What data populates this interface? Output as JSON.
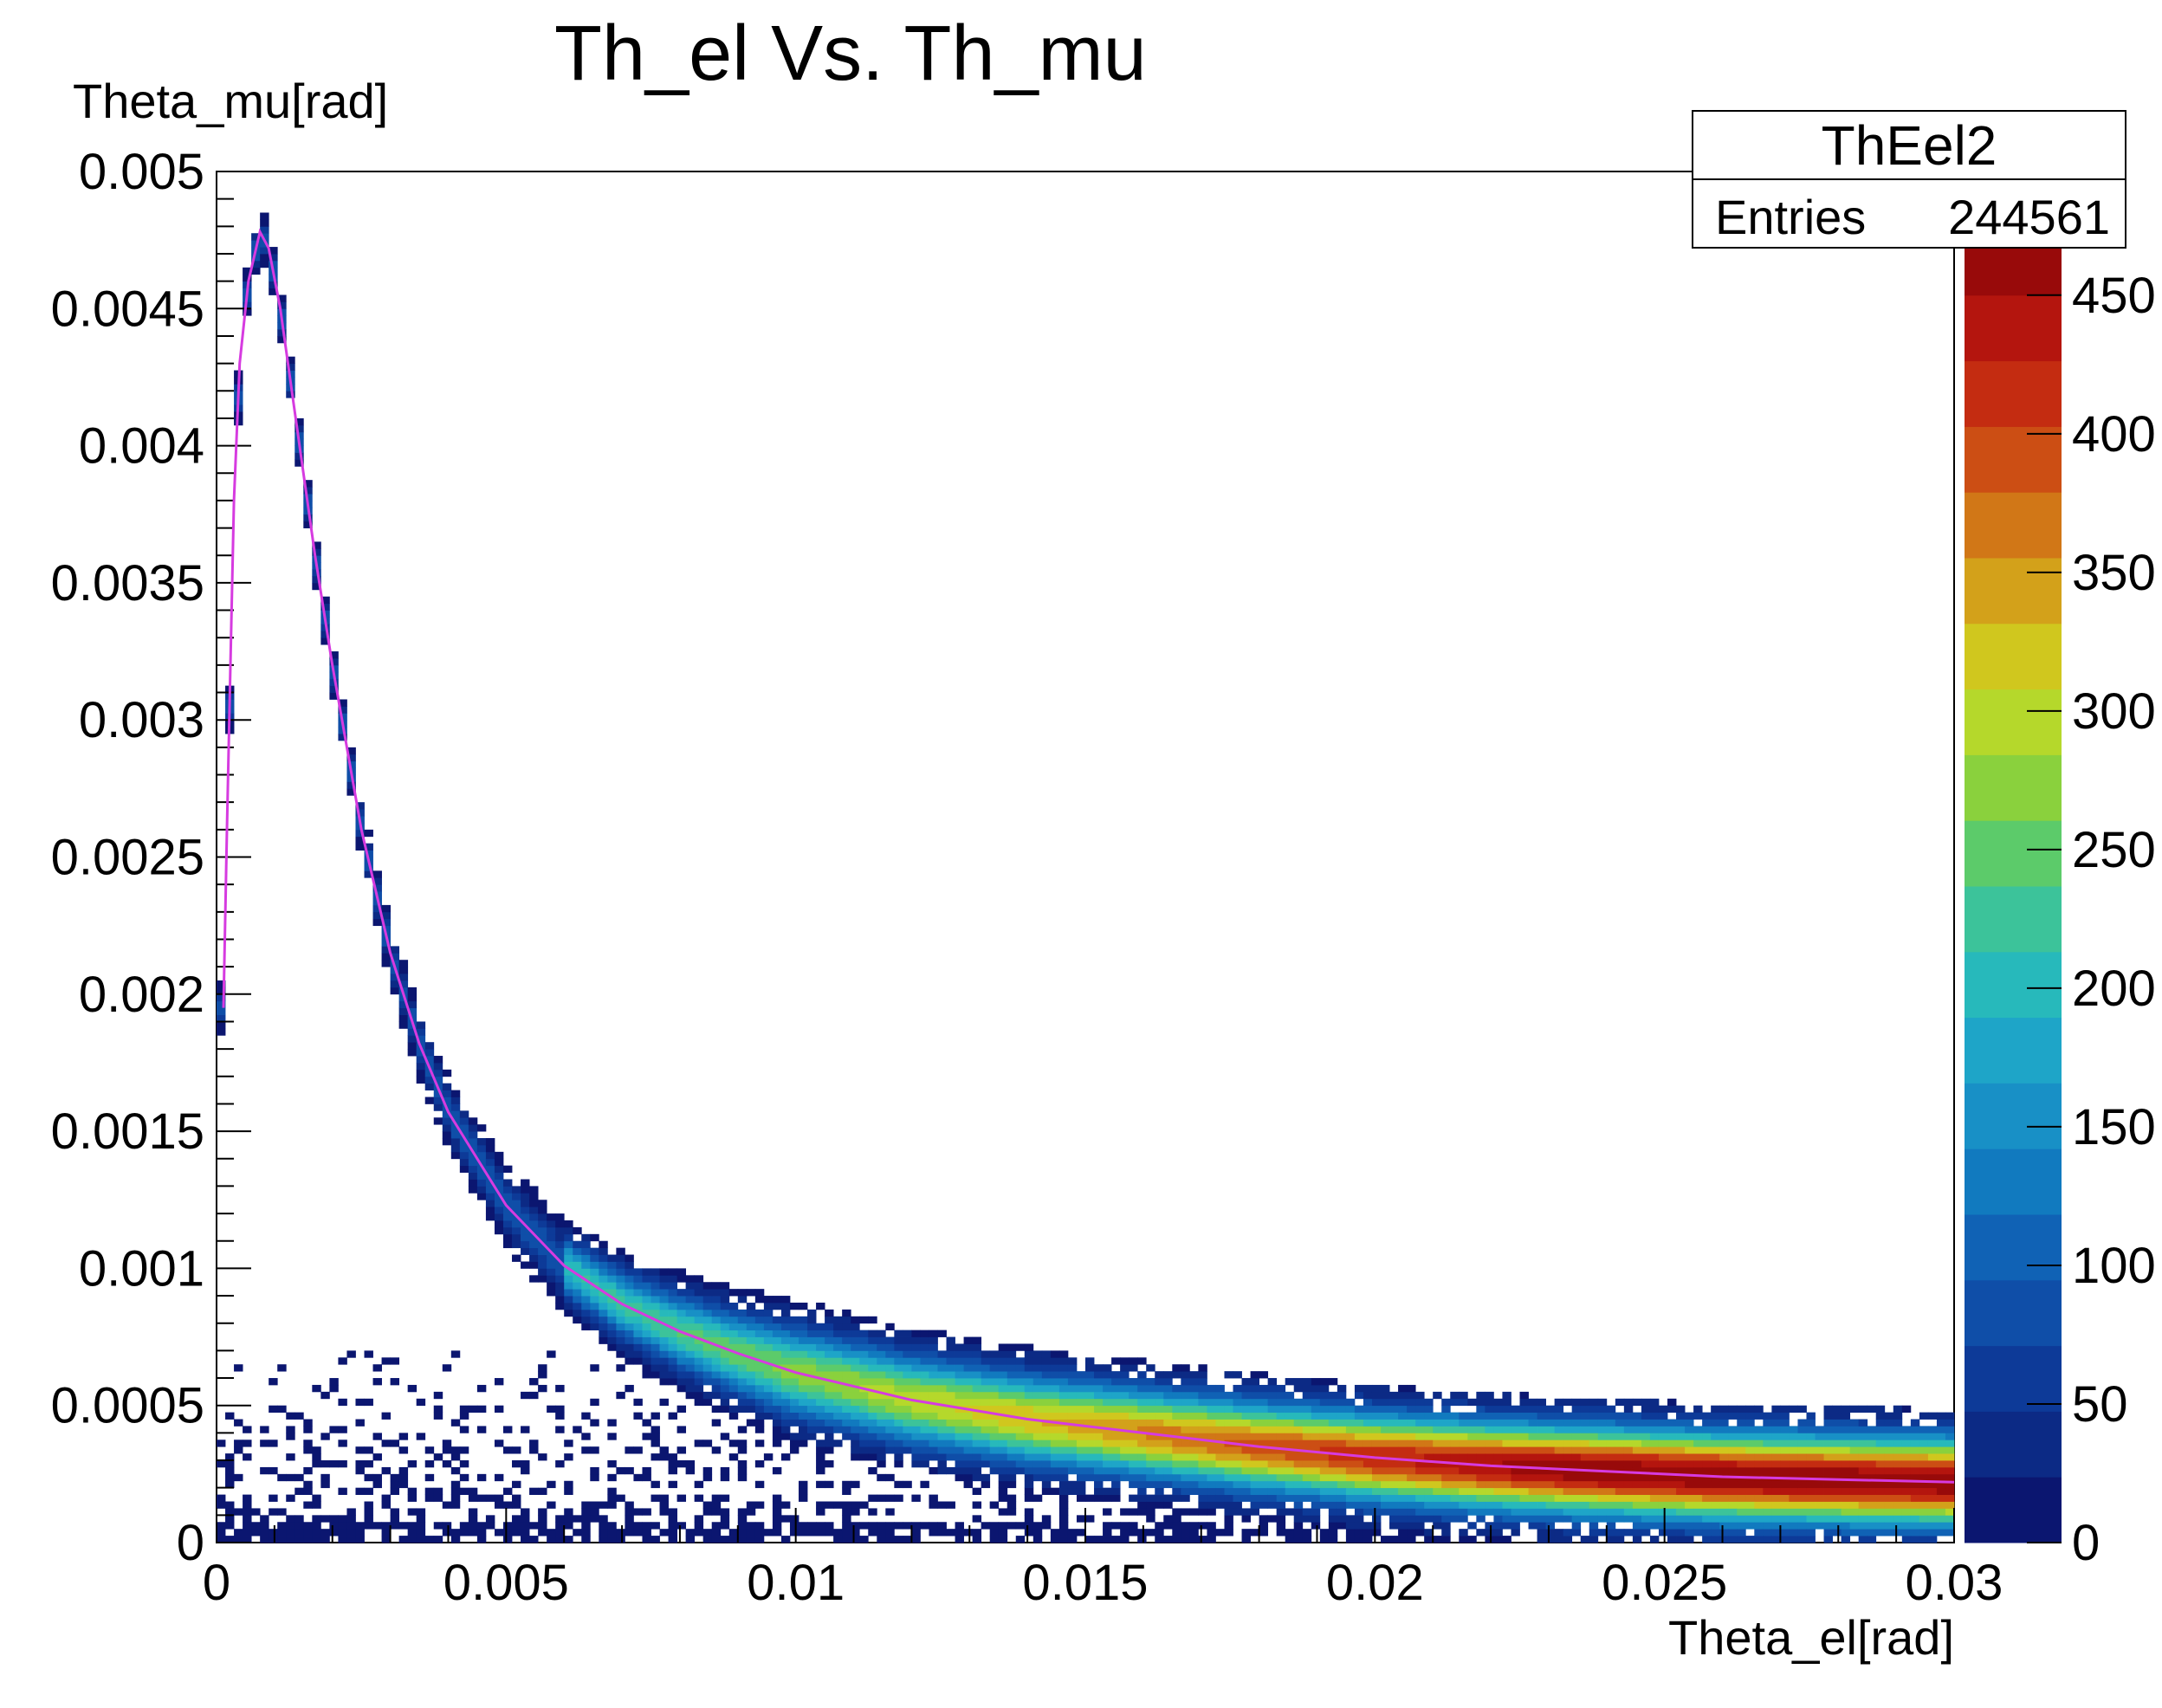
{
  "chart_data": {
    "type": "heatmap",
    "title": "Th_el Vs. Th_mu",
    "xlabel": "Theta_el[rad]",
    "ylabel": "Theta_mu[rad]",
    "xlim": [
      0,
      0.03
    ],
    "ylim": [
      0,
      0.005
    ],
    "x_ticks": [
      "0",
      "0.005",
      "0.01",
      "0.015",
      "0.02",
      "0.025",
      "0.03"
    ],
    "x_tick_values": [
      0,
      0.005,
      0.01,
      0.015,
      0.02,
      0.025,
      0.03
    ],
    "y_ticks": [
      "0",
      "0.0005",
      "0.001",
      "0.0015",
      "0.002",
      "0.0025",
      "0.003",
      "0.0035",
      "0.004",
      "0.0045",
      "0.005"
    ],
    "y_tick_values": [
      0,
      0.0005,
      0.001,
      0.0015,
      0.002,
      0.0025,
      0.003,
      0.0035,
      0.004,
      0.0045,
      0.005
    ],
    "colorbar": {
      "range": [
        0,
        450
      ],
      "labels": [
        "0",
        "50",
        "100",
        "150",
        "200",
        "250",
        "300",
        "350",
        "400",
        "450"
      ],
      "label_values": [
        0,
        50,
        100,
        150,
        200,
        250,
        300,
        350,
        400,
        450
      ],
      "palette": [
        "#0b1670",
        "#0c2a85",
        "#0d3a98",
        "#0f4ea8",
        "#1062b5",
        "#117abf",
        "#1890c6",
        "#1ea5c8",
        "#27b9bb",
        "#3cc39a",
        "#5ccb6a",
        "#8ad13d",
        "#b5d82b",
        "#d0c71e",
        "#d3a11a",
        "#d17717",
        "#cc4e14",
        "#c42c11",
        "#b4150e",
        "#980a0a"
      ]
    },
    "stats_box": {
      "name": "ThEel2",
      "entries_label": "Entries",
      "entries_value": "244561"
    },
    "ridge_curve": {
      "color": "#d63be0",
      "points": [
        [
          0.00012,
          0.00195
        ],
        [
          0.00018,
          0.0026
        ],
        [
          0.00025,
          0.0033
        ],
        [
          0.0003,
          0.0038
        ],
        [
          0.0004,
          0.0043
        ],
        [
          0.00055,
          0.0046
        ],
        [
          0.00075,
          0.00478
        ],
        [
          0.0009,
          0.00472
        ],
        [
          0.0011,
          0.0045
        ],
        [
          0.0013,
          0.0042
        ],
        [
          0.0015,
          0.0039
        ],
        [
          0.0017,
          0.0036
        ],
        [
          0.002,
          0.0032
        ],
        [
          0.0025,
          0.0026
        ],
        [
          0.003,
          0.00215
        ],
        [
          0.0035,
          0.00182
        ],
        [
          0.004,
          0.00157
        ],
        [
          0.005,
          0.00123
        ],
        [
          0.006,
          0.00101
        ],
        [
          0.007,
          0.00087
        ],
        [
          0.008,
          0.00077
        ],
        [
          0.009,
          0.00069
        ],
        [
          0.01,
          0.00062
        ],
        [
          0.012,
          0.00052
        ],
        [
          0.014,
          0.00045
        ],
        [
          0.016,
          0.0004
        ],
        [
          0.018,
          0.00035
        ],
        [
          0.02,
          0.00031
        ],
        [
          0.022,
          0.00028
        ],
        [
          0.024,
          0.00026
        ],
        [
          0.026,
          0.00024
        ],
        [
          0.028,
          0.00023
        ],
        [
          0.03,
          0.00022
        ]
      ]
    }
  }
}
